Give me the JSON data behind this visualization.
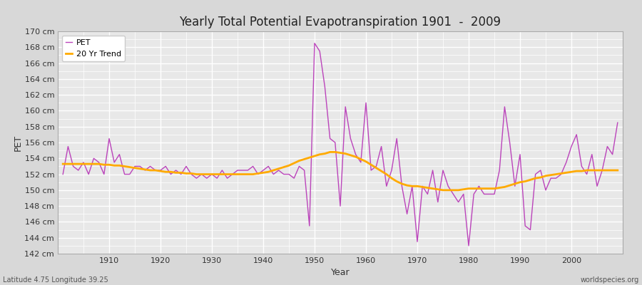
{
  "title": "Yearly Total Potential Evapotranspiration 1901  -  2009",
  "xlabel": "Year",
  "ylabel": "PET",
  "subtitle": "Latitude 4.75 Longitude 39.25",
  "watermark": "worldspecies.org",
  "pet_color": "#bb44bb",
  "trend_color": "#ffaa00",
  "fig_bg_color": "#d8d8d8",
  "plot_bg_color": "#e8e8e8",
  "ylim": [
    142,
    170
  ],
  "ytick_step": 2,
  "xlim_left": 1900,
  "xlim_right": 2010,
  "years": [
    1901,
    1902,
    1903,
    1904,
    1905,
    1906,
    1907,
    1908,
    1909,
    1910,
    1911,
    1912,
    1913,
    1914,
    1915,
    1916,
    1917,
    1918,
    1919,
    1920,
    1921,
    1922,
    1923,
    1924,
    1925,
    1926,
    1927,
    1928,
    1929,
    1930,
    1931,
    1932,
    1933,
    1934,
    1935,
    1936,
    1937,
    1938,
    1939,
    1940,
    1941,
    1942,
    1943,
    1944,
    1945,
    1946,
    1947,
    1948,
    1949,
    1950,
    1951,
    1952,
    1953,
    1954,
    1955,
    1956,
    1957,
    1958,
    1959,
    1960,
    1961,
    1962,
    1963,
    1964,
    1965,
    1966,
    1967,
    1968,
    1969,
    1970,
    1971,
    1972,
    1973,
    1974,
    1975,
    1976,
    1977,
    1978,
    1979,
    1980,
    1981,
    1982,
    1983,
    1984,
    1985,
    1986,
    1987,
    1988,
    1989,
    1990,
    1991,
    1992,
    1993,
    1994,
    1995,
    1996,
    1997,
    1998,
    1999,
    2000,
    2001,
    2002,
    2003,
    2004,
    2005,
    2006,
    2007,
    2008,
    2009
  ],
  "pet_values": [
    152.0,
    155.5,
    153.0,
    152.5,
    153.5,
    152.0,
    154.0,
    153.5,
    152.0,
    156.5,
    153.5,
    154.5,
    152.0,
    152.0,
    153.0,
    153.0,
    152.5,
    153.0,
    152.5,
    152.5,
    153.0,
    152.0,
    152.5,
    152.0,
    153.0,
    152.0,
    151.5,
    152.0,
    151.5,
    152.0,
    151.5,
    152.5,
    151.5,
    152.0,
    152.5,
    152.5,
    152.5,
    153.0,
    152.0,
    152.5,
    153.0,
    152.0,
    152.5,
    152.0,
    152.0,
    151.5,
    153.0,
    152.5,
    145.5,
    168.5,
    167.5,
    163.0,
    156.5,
    156.0,
    148.0,
    160.5,
    156.5,
    154.5,
    153.5,
    161.0,
    152.5,
    153.0,
    155.5,
    150.5,
    152.5,
    156.5,
    150.5,
    147.0,
    150.5,
    143.5,
    150.5,
    149.5,
    152.5,
    148.5,
    152.5,
    150.5,
    149.5,
    148.5,
    149.5,
    143.0,
    149.5,
    150.5,
    149.5,
    149.5,
    149.5,
    152.5,
    160.5,
    156.0,
    150.5,
    154.5,
    145.5,
    145.0,
    152.0,
    152.5,
    150.0,
    151.5,
    151.5,
    152.0,
    153.5,
    155.5,
    157.0,
    153.0,
    152.0,
    154.5,
    150.5,
    152.5,
    155.5,
    154.5,
    158.5
  ],
  "trend_values": [
    153.3,
    153.3,
    153.3,
    153.3,
    153.3,
    153.3,
    153.3,
    153.3,
    153.2,
    153.2,
    153.1,
    153.1,
    153.0,
    152.9,
    152.8,
    152.7,
    152.6,
    152.5,
    152.5,
    152.4,
    152.3,
    152.3,
    152.2,
    152.2,
    152.1,
    152.1,
    152.0,
    152.0,
    152.0,
    152.0,
    152.0,
    152.0,
    152.0,
    152.0,
    152.0,
    152.0,
    152.0,
    152.0,
    152.1,
    152.2,
    152.3,
    152.5,
    152.7,
    152.9,
    153.1,
    153.4,
    153.7,
    153.9,
    154.1,
    154.3,
    154.5,
    154.6,
    154.8,
    154.8,
    154.7,
    154.6,
    154.4,
    154.2,
    153.9,
    153.6,
    153.2,
    152.8,
    152.4,
    152.0,
    151.5,
    151.1,
    150.8,
    150.6,
    150.5,
    150.5,
    150.4,
    150.3,
    150.2,
    150.1,
    150.0,
    150.0,
    150.0,
    150.0,
    150.1,
    150.2,
    150.2,
    150.2,
    150.2,
    150.2,
    150.2,
    150.3,
    150.4,
    150.6,
    150.8,
    151.0,
    151.1,
    151.3,
    151.5,
    151.6,
    151.8,
    151.9,
    152.0,
    152.1,
    152.2,
    152.3,
    152.4,
    152.4,
    152.5,
    152.5,
    152.5,
    152.5,
    152.5,
    152.5,
    152.5
  ]
}
